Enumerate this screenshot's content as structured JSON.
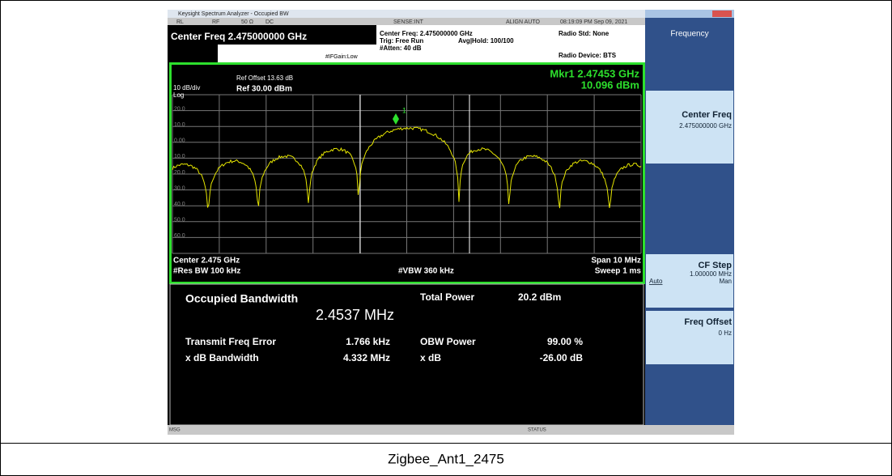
{
  "titlebar": "Keysight Spectrum Analyzer - Occupied BW",
  "status": {
    "rl": "RL",
    "rf": "RF",
    "ohm": "50 Ω",
    "dc": "DC",
    "sense": "SENSE:INT",
    "align": "ALIGN AUTO",
    "time": "08:19:09 PM Sep 09, 2021"
  },
  "header": {
    "center_freq": "Center Freq 2.475000000 GHz",
    "ifgain": "#IFGain:Low",
    "center": "Center Freq: 2.475000000 GHz",
    "trig": "Trig: Free Run",
    "atten": "#Atten: 40 dB",
    "avg": "Avg|Hold: 100/100",
    "radio_std": "Radio Std: None",
    "radio_device": "Radio Device: BTS"
  },
  "plot": {
    "ref_offset": "Ref Offset 13.63 dB",
    "scale": "10 dB/div",
    "ref": "Ref 30.00 dBm",
    "log": "Log",
    "marker": "Mkr1  2.47453 GHz",
    "marker_value": "10.096 dBm",
    "marker_label": "1",
    "y_labels": [
      "20.0",
      "10.0",
      "0.00",
      "10.0",
      "20.0",
      "30.0",
      "40.0",
      "50.0",
      "60.0"
    ],
    "center": "Center  2.475 GHz",
    "rbw": "#Res BW  100 kHz",
    "vbw": "#VBW  360 kHz",
    "span": "Span 10 MHz",
    "sweep": "Sweep  1 ms"
  },
  "results": {
    "obw_label": "Occupied Bandwidth",
    "obw_value": "2.4537 MHz",
    "total_power_label": "Total Power",
    "total_power": "20.2 dBm",
    "tfe_label": "Transmit Freq Error",
    "tfe": "1.766 kHz",
    "obw_power_label": "OBW Power",
    "obw_power": "99.00 %",
    "xdb_bw_label": "x dB Bandwidth",
    "xdb_bw": "4.332 MHz",
    "xdb_label": "x dB",
    "xdb": "-26.00 dB"
  },
  "softkeys": {
    "menu": "Frequency",
    "center_freq": "Center Freq",
    "center_freq_value": "2.475000000 GHz",
    "cf_step": "CF Step",
    "cf_step_value": "1.000000 MHz",
    "auto": "Auto",
    "man": "Man",
    "freq_offset": "Freq Offset",
    "freq_offset_value": "0 Hz"
  },
  "footer": {
    "msg": "MSG",
    "status": "STATUS"
  },
  "caption": "Zigbee_Ant1_2475"
}
